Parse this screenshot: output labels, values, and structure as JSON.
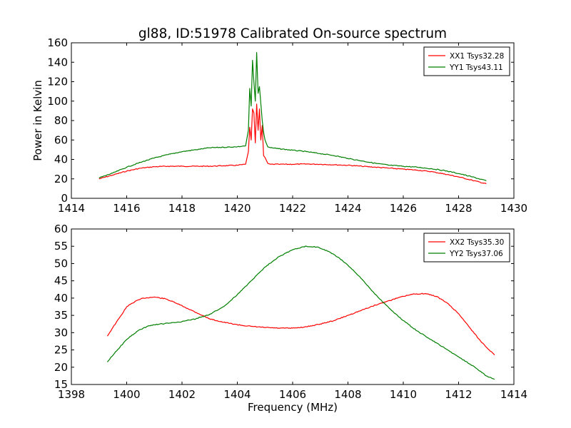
{
  "title": "gl88, ID:51978 Calibrated On-source spectrum",
  "colors": {
    "red": "#ff0000",
    "green": "#007f00",
    "axis": "#000000"
  },
  "chart_data": [
    {
      "type": "line",
      "ylabel": "Power in Kelvin",
      "xlabel": "",
      "xlim": [
        1414,
        1430
      ],
      "ylim": [
        0,
        160
      ],
      "xticks": [
        1414,
        1416,
        1418,
        1420,
        1422,
        1424,
        1426,
        1428,
        1430
      ],
      "yticks": [
        0,
        20,
        40,
        60,
        80,
        100,
        120,
        140,
        160
      ],
      "legend_position": "top-right",
      "series": [
        {
          "name": "XX1 Tsys32.28",
          "color": "#ff0000",
          "x": [
            1415.0,
            1415.5,
            1416.0,
            1416.5,
            1417.0,
            1417.5,
            1418.0,
            1418.5,
            1419.0,
            1419.5,
            1420.0,
            1420.3,
            1420.4,
            1420.45,
            1420.5,
            1420.55,
            1420.6,
            1420.65,
            1420.7,
            1420.75,
            1420.8,
            1420.85,
            1420.9,
            1420.95,
            1421.0,
            1421.1,
            1421.2,
            1421.5,
            1422.0,
            1422.5,
            1423.0,
            1423.5,
            1424.0,
            1424.5,
            1425.0,
            1425.5,
            1426.0,
            1426.5,
            1427.0,
            1427.5,
            1428.0,
            1428.5,
            1429.0
          ],
          "values": [
            20,
            24,
            28,
            31,
            32.5,
            33,
            33,
            33,
            33,
            33.5,
            34,
            35,
            48,
            73,
            60,
            92,
            88,
            57,
            97,
            70,
            92,
            60,
            75,
            44,
            42,
            36,
            35,
            35,
            35,
            35.3,
            35,
            34.5,
            34,
            33,
            32,
            31,
            30,
            29,
            27.5,
            25,
            22,
            18.5,
            15
          ]
        },
        {
          "name": "YY1 Tsys43.11",
          "color": "#007f00",
          "x": [
            1415.0,
            1415.5,
            1416.0,
            1416.5,
            1417.0,
            1417.5,
            1418.0,
            1418.5,
            1419.0,
            1419.5,
            1420.0,
            1420.3,
            1420.4,
            1420.45,
            1420.5,
            1420.55,
            1420.6,
            1420.65,
            1420.7,
            1420.75,
            1420.8,
            1420.85,
            1420.9,
            1420.95,
            1421.0,
            1421.1,
            1421.2,
            1421.5,
            1422.0,
            1422.5,
            1423.0,
            1423.5,
            1424.0,
            1424.5,
            1425.0,
            1425.5,
            1426.0,
            1426.5,
            1427.0,
            1427.5,
            1428.0,
            1428.5,
            1429.0
          ],
          "values": [
            21,
            26,
            32,
            37,
            41.5,
            45,
            48,
            50,
            52,
            52.5,
            53,
            54,
            70,
            113,
            95,
            142,
            120,
            100,
            150,
            108,
            115,
            98,
            80,
            68,
            60,
            53,
            52,
            51,
            49.5,
            48,
            46,
            44,
            41,
            38.5,
            36,
            34,
            33,
            32,
            30.5,
            28.5,
            25.5,
            22,
            18
          ]
        }
      ]
    },
    {
      "type": "line",
      "xlabel": "Frequency (MHz)",
      "ylabel": "",
      "xlim": [
        1398,
        1414
      ],
      "ylim": [
        15,
        60
      ],
      "xticks": [
        1398,
        1400,
        1402,
        1404,
        1406,
        1408,
        1410,
        1412,
        1414
      ],
      "yticks": [
        15,
        20,
        25,
        30,
        35,
        40,
        45,
        50,
        55,
        60
      ],
      "legend_position": "top-right",
      "series": [
        {
          "name": "XX2 Tsys35.30",
          "color": "#ff0000",
          "x": [
            1399.3,
            1399.5,
            1399.8,
            1400.0,
            1400.3,
            1400.6,
            1401.0,
            1401.4,
            1401.8,
            1402.2,
            1402.6,
            1403.0,
            1403.5,
            1404.0,
            1404.5,
            1405.0,
            1405.5,
            1406.0,
            1406.5,
            1407.0,
            1407.5,
            1408.0,
            1408.5,
            1409.0,
            1409.5,
            1410.0,
            1410.4,
            1410.8,
            1411.2,
            1411.6,
            1412.0,
            1412.4,
            1412.8,
            1413.3
          ],
          "values": [
            29,
            31.5,
            35,
            37.5,
            39,
            40,
            40.3,
            39.8,
            38.5,
            37,
            35.5,
            34,
            33,
            32.3,
            31.8,
            31.5,
            31.3,
            31.3,
            31.7,
            32.5,
            33.5,
            35,
            36.5,
            38,
            39.3,
            40.5,
            41.2,
            41.3,
            40.5,
            38.5,
            35.5,
            31.5,
            27.5,
            23.5
          ]
        },
        {
          "name": "YY2 Tsys37.06",
          "color": "#007f00",
          "x": [
            1399.3,
            1399.6,
            1400.0,
            1400.4,
            1400.8,
            1401.2,
            1401.6,
            1402.0,
            1402.5,
            1403.0,
            1403.5,
            1404.0,
            1404.5,
            1405.0,
            1405.5,
            1406.0,
            1406.5,
            1406.9,
            1407.3,
            1407.7,
            1408.0,
            1408.5,
            1409.0,
            1409.5,
            1410.0,
            1410.5,
            1411.0,
            1411.5,
            1412.0,
            1412.5,
            1413.0,
            1413.3
          ],
          "values": [
            21.5,
            24.5,
            28,
            30.5,
            32,
            32.5,
            32.8,
            33.2,
            34,
            35.3,
            37.5,
            41,
            45,
            49,
            52,
            54,
            55,
            54.8,
            53.5,
            51.5,
            49.5,
            45.5,
            41,
            37,
            33.5,
            30.5,
            28,
            25.5,
            23,
            20.5,
            17.5,
            16.5
          ]
        }
      ]
    }
  ]
}
